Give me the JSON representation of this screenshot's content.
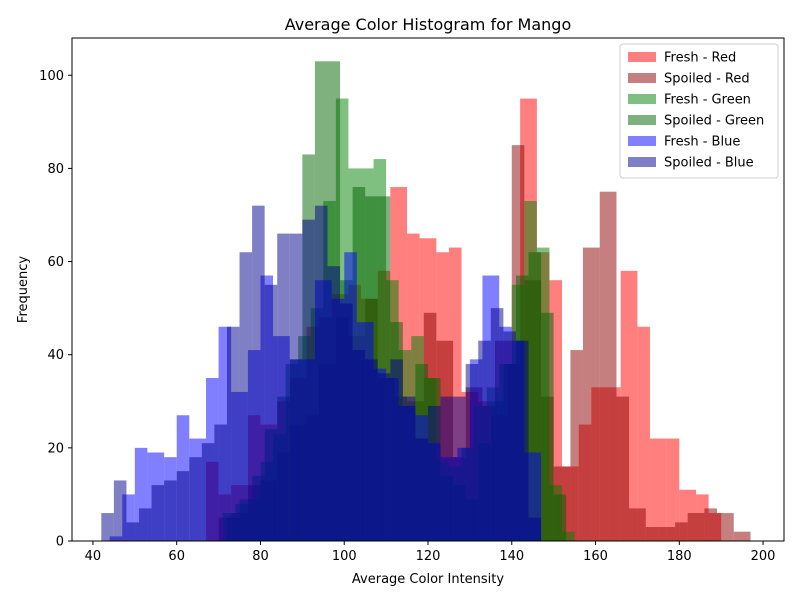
{
  "chart_data": {
    "type": "histogram",
    "title": "Average Color Histogram for Mango",
    "xlabel": "Average Color Intensity",
    "ylabel": "Frequency",
    "xlim": [
      35,
      205
    ],
    "ylim": [
      0,
      108
    ],
    "xticks": [
      40,
      60,
      80,
      100,
      120,
      140,
      160,
      180,
      200
    ],
    "yticks": [
      0,
      20,
      40,
      60,
      80,
      100
    ],
    "grid": false,
    "legend_position": "top-right",
    "series": [
      {
        "name": "Fresh - Red",
        "color": "#ff0000",
        "alpha": 0.5,
        "bins": [
          {
            "x0": 67,
            "x1": 70,
            "y": 17
          },
          {
            "x0": 70,
            "x1": 73,
            "y": 10
          },
          {
            "x0": 73,
            "x1": 77,
            "y": 12
          },
          {
            "x0": 77,
            "x1": 80,
            "y": 27
          },
          {
            "x0": 80,
            "x1": 84,
            "y": 25
          },
          {
            "x0": 84,
            "x1": 87,
            "y": 30
          },
          {
            "x0": 87,
            "x1": 91,
            "y": 35
          },
          {
            "x0": 91,
            "x1": 94,
            "y": 46
          },
          {
            "x0": 94,
            "x1": 97,
            "y": 48
          },
          {
            "x0": 97,
            "x1": 101,
            "y": 53
          },
          {
            "x0": 101,
            "x1": 104,
            "y": 55
          },
          {
            "x0": 104,
            "x1": 108,
            "y": 52
          },
          {
            "x0": 108,
            "x1": 111,
            "y": 58
          },
          {
            "x0": 111,
            "x1": 115,
            "y": 76
          },
          {
            "x0": 115,
            "x1": 118,
            "y": 66
          },
          {
            "x0": 118,
            "x1": 122,
            "y": 65
          },
          {
            "x0": 122,
            "x1": 125,
            "y": 62
          },
          {
            "x0": 125,
            "x1": 128,
            "y": 63
          },
          {
            "x0": 128,
            "x1": 132,
            "y": 32
          },
          {
            "x0": 132,
            "x1": 135,
            "y": 30
          },
          {
            "x0": 135,
            "x1": 139,
            "y": 27
          },
          {
            "x0": 139,
            "x1": 142,
            "y": 38
          },
          {
            "x0": 142,
            "x1": 146,
            "y": 95
          },
          {
            "x0": 146,
            "x1": 149,
            "y": 62
          },
          {
            "x0": 149,
            "x1": 152,
            "y": 56
          },
          {
            "x0": 152,
            "x1": 156,
            "y": 16
          },
          {
            "x0": 156,
            "x1": 159,
            "y": 25
          },
          {
            "x0": 159,
            "x1": 163,
            "y": 33
          },
          {
            "x0": 163,
            "x1": 166,
            "y": 33
          },
          {
            "x0": 166,
            "x1": 170,
            "y": 58
          },
          {
            "x0": 170,
            "x1": 173,
            "y": 46
          },
          {
            "x0": 173,
            "x1": 177,
            "y": 22
          },
          {
            "x0": 177,
            "x1": 180,
            "y": 22
          },
          {
            "x0": 180,
            "x1": 184,
            "y": 11
          },
          {
            "x0": 184,
            "x1": 187,
            "y": 10
          },
          {
            "x0": 187,
            "x1": 190,
            "y": 6
          }
        ]
      },
      {
        "name": "Spoiled - Red",
        "color": "#8b0000",
        "alpha": 0.5,
        "bins": [
          {
            "x0": 70,
            "x1": 73,
            "y": 5
          },
          {
            "x0": 73,
            "x1": 77,
            "y": 6
          },
          {
            "x0": 77,
            "x1": 80,
            "y": 12
          },
          {
            "x0": 80,
            "x1": 84,
            "y": 13
          },
          {
            "x0": 84,
            "x1": 87,
            "y": 19
          },
          {
            "x0": 87,
            "x1": 91,
            "y": 25
          },
          {
            "x0": 91,
            "x1": 94,
            "y": 27
          },
          {
            "x0": 94,
            "x1": 98,
            "y": 38
          },
          {
            "x0": 98,
            "x1": 101,
            "y": 48
          },
          {
            "x0": 101,
            "x1": 105,
            "y": 44
          },
          {
            "x0": 105,
            "x1": 108,
            "y": 52
          },
          {
            "x0": 108,
            "x1": 112,
            "y": 35
          },
          {
            "x0": 112,
            "x1": 115,
            "y": 31
          },
          {
            "x0": 115,
            "x1": 119,
            "y": 30
          },
          {
            "x0": 119,
            "x1": 122,
            "y": 49
          },
          {
            "x0": 122,
            "x1": 126,
            "y": 43
          },
          {
            "x0": 126,
            "x1": 129,
            "y": 18
          },
          {
            "x0": 129,
            "x1": 133,
            "y": 33
          },
          {
            "x0": 133,
            "x1": 136,
            "y": 29
          },
          {
            "x0": 136,
            "x1": 140,
            "y": 43
          },
          {
            "x0": 140,
            "x1": 143,
            "y": 85
          },
          {
            "x0": 143,
            "x1": 147,
            "y": 56
          },
          {
            "x0": 147,
            "x1": 150,
            "y": 31
          },
          {
            "x0": 150,
            "x1": 154,
            "y": 16
          },
          {
            "x0": 154,
            "x1": 157,
            "y": 41
          },
          {
            "x0": 157,
            "x1": 161,
            "y": 63
          },
          {
            "x0": 161,
            "x1": 165,
            "y": 75
          },
          {
            "x0": 165,
            "x1": 168,
            "y": 31
          },
          {
            "x0": 168,
            "x1": 172,
            "y": 7
          },
          {
            "x0": 172,
            "x1": 175,
            "y": 3
          },
          {
            "x0": 175,
            "x1": 179,
            "y": 3
          },
          {
            "x0": 179,
            "x1": 182,
            "y": 4
          },
          {
            "x0": 182,
            "x1": 186,
            "y": 6
          },
          {
            "x0": 186,
            "x1": 189,
            "y": 7
          },
          {
            "x0": 189,
            "x1": 193,
            "y": 6
          },
          {
            "x0": 193,
            "x1": 197,
            "y": 2
          }
        ]
      },
      {
        "name": "Fresh - Green",
        "color": "#008000",
        "alpha": 0.5,
        "bins": [
          {
            "x0": 71,
            "x1": 74,
            "y": 6
          },
          {
            "x0": 74,
            "x1": 77,
            "y": 8
          },
          {
            "x0": 77,
            "x1": 80,
            "y": 9
          },
          {
            "x0": 80,
            "x1": 83,
            "y": 17
          },
          {
            "x0": 83,
            "x1": 86,
            "y": 23
          },
          {
            "x0": 86,
            "x1": 89,
            "y": 38
          },
          {
            "x0": 89,
            "x1": 92,
            "y": 44
          },
          {
            "x0": 92,
            "x1": 95,
            "y": 50
          },
          {
            "x0": 95,
            "x1": 98,
            "y": 73
          },
          {
            "x0": 98,
            "x1": 101,
            "y": 95
          },
          {
            "x0": 101,
            "x1": 104,
            "y": 80
          },
          {
            "x0": 104,
            "x1": 107,
            "y": 80
          },
          {
            "x0": 107,
            "x1": 110,
            "y": 82
          },
          {
            "x0": 110,
            "x1": 113,
            "y": 56
          },
          {
            "x0": 113,
            "x1": 116,
            "y": 41
          },
          {
            "x0": 116,
            "x1": 119,
            "y": 44
          },
          {
            "x0": 119,
            "x1": 122,
            "y": 35
          },
          {
            "x0": 122,
            "x1": 125,
            "y": 17
          },
          {
            "x0": 125,
            "x1": 128,
            "y": 16
          },
          {
            "x0": 128,
            "x1": 131,
            "y": 20
          },
          {
            "x0": 131,
            "x1": 134,
            "y": 29
          },
          {
            "x0": 134,
            "x1": 137,
            "y": 33
          },
          {
            "x0": 137,
            "x1": 140,
            "y": 38
          },
          {
            "x0": 140,
            "x1": 143,
            "y": 55
          },
          {
            "x0": 143,
            "x1": 146,
            "y": 73
          },
          {
            "x0": 146,
            "x1": 149,
            "y": 63
          },
          {
            "x0": 149,
            "x1": 152,
            "y": 12
          },
          {
            "x0": 152,
            "x1": 155,
            "y": 2
          }
        ]
      },
      {
        "name": "Spoiled - Green",
        "color": "#006400",
        "alpha": 0.5,
        "bins": [
          {
            "x0": 72,
            "x1": 75,
            "y": 5
          },
          {
            "x0": 75,
            "x1": 78,
            "y": 9
          },
          {
            "x0": 78,
            "x1": 81,
            "y": 14
          },
          {
            "x0": 81,
            "x1": 84,
            "y": 24
          },
          {
            "x0": 84,
            "x1": 87,
            "y": 31
          },
          {
            "x0": 87,
            "x1": 90,
            "y": 39
          },
          {
            "x0": 90,
            "x1": 93,
            "y": 83
          },
          {
            "x0": 93,
            "x1": 96,
            "y": 103
          },
          {
            "x0": 96,
            "x1": 99,
            "y": 103
          },
          {
            "x0": 99,
            "x1": 102,
            "y": 56
          },
          {
            "x0": 102,
            "x1": 105,
            "y": 76
          },
          {
            "x0": 105,
            "x1": 108,
            "y": 74
          },
          {
            "x0": 108,
            "x1": 111,
            "y": 74
          },
          {
            "x0": 111,
            "x1": 114,
            "y": 47
          },
          {
            "x0": 114,
            "x1": 117,
            "y": 29
          },
          {
            "x0": 117,
            "x1": 120,
            "y": 38
          },
          {
            "x0": 120,
            "x1": 123,
            "y": 35
          },
          {
            "x0": 123,
            "x1": 126,
            "y": 14
          },
          {
            "x0": 126,
            "x1": 129,
            "y": 12
          },
          {
            "x0": 129,
            "x1": 132,
            "y": 9
          },
          {
            "x0": 132,
            "x1": 135,
            "y": 21
          },
          {
            "x0": 135,
            "x1": 138,
            "y": 30
          },
          {
            "x0": 138,
            "x1": 141,
            "y": 38
          },
          {
            "x0": 141,
            "x1": 144,
            "y": 57
          },
          {
            "x0": 144,
            "x1": 147,
            "y": 62
          },
          {
            "x0": 147,
            "x1": 150,
            "y": 49
          },
          {
            "x0": 150,
            "x1": 153,
            "y": 10
          }
        ]
      },
      {
        "name": "Fresh - Blue",
        "color": "#0000ff",
        "alpha": 0.5,
        "bins": [
          {
            "x0": 44,
            "x1": 47,
            "y": 1
          },
          {
            "x0": 47,
            "x1": 50,
            "y": 10
          },
          {
            "x0": 50,
            "x1": 53,
            "y": 20
          },
          {
            "x0": 53,
            "x1": 57,
            "y": 19
          },
          {
            "x0": 57,
            "x1": 60,
            "y": 18
          },
          {
            "x0": 60,
            "x1": 63,
            "y": 27
          },
          {
            "x0": 63,
            "x1": 67,
            "y": 22
          },
          {
            "x0": 67,
            "x1": 70,
            "y": 35
          },
          {
            "x0": 70,
            "x1": 73,
            "y": 46
          },
          {
            "x0": 73,
            "x1": 77,
            "y": 32
          },
          {
            "x0": 77,
            "x1": 80,
            "y": 41
          },
          {
            "x0": 80,
            "x1": 83,
            "y": 57
          },
          {
            "x0": 83,
            "x1": 87,
            "y": 44
          },
          {
            "x0": 87,
            "x1": 90,
            "y": 39
          },
          {
            "x0": 90,
            "x1": 93,
            "y": 39
          },
          {
            "x0": 93,
            "x1": 97,
            "y": 56
          },
          {
            "x0": 97,
            "x1": 100,
            "y": 52
          },
          {
            "x0": 100,
            "x1": 103,
            "y": 62
          },
          {
            "x0": 103,
            "x1": 107,
            "y": 47
          },
          {
            "x0": 107,
            "x1": 110,
            "y": 37
          },
          {
            "x0": 110,
            "x1": 113,
            "y": 35
          },
          {
            "x0": 113,
            "x1": 117,
            "y": 29
          },
          {
            "x0": 117,
            "x1": 120,
            "y": 27
          },
          {
            "x0": 120,
            "x1": 123,
            "y": 21
          },
          {
            "x0": 123,
            "x1": 127,
            "y": 18
          },
          {
            "x0": 127,
            "x1": 130,
            "y": 20
          },
          {
            "x0": 130,
            "x1": 133,
            "y": 39
          },
          {
            "x0": 133,
            "x1": 137,
            "y": 57
          },
          {
            "x0": 137,
            "x1": 140,
            "y": 46
          },
          {
            "x0": 140,
            "x1": 143,
            "y": 43
          },
          {
            "x0": 143,
            "x1": 147,
            "y": 19
          }
        ]
      },
      {
        "name": "Spoiled - Blue",
        "color": "#00008b",
        "alpha": 0.5,
        "bins": [
          {
            "x0": 42,
            "x1": 45,
            "y": 6
          },
          {
            "x0": 45,
            "x1": 48,
            "y": 13
          },
          {
            "x0": 48,
            "x1": 51,
            "y": 4
          },
          {
            "x0": 51,
            "x1": 54,
            "y": 7
          },
          {
            "x0": 54,
            "x1": 57,
            "y": 12
          },
          {
            "x0": 57,
            "x1": 60,
            "y": 13
          },
          {
            "x0": 60,
            "x1": 63,
            "y": 15
          },
          {
            "x0": 63,
            "x1": 66,
            "y": 18
          },
          {
            "x0": 66,
            "x1": 69,
            "y": 21
          },
          {
            "x0": 69,
            "x1": 72,
            "y": 25
          },
          {
            "x0": 72,
            "x1": 75,
            "y": 46
          },
          {
            "x0": 75,
            "x1": 78,
            "y": 62
          },
          {
            "x0": 78,
            "x1": 81,
            "y": 72
          },
          {
            "x0": 81,
            "x1": 84,
            "y": 55
          },
          {
            "x0": 84,
            "x1": 87,
            "y": 66
          },
          {
            "x0": 87,
            "x1": 90,
            "y": 66
          },
          {
            "x0": 90,
            "x1": 93,
            "y": 69
          },
          {
            "x0": 93,
            "x1": 96,
            "y": 72
          },
          {
            "x0": 96,
            "x1": 99,
            "y": 59
          },
          {
            "x0": 99,
            "x1": 102,
            "y": 51
          },
          {
            "x0": 102,
            "x1": 105,
            "y": 41
          },
          {
            "x0": 105,
            "x1": 108,
            "y": 39
          },
          {
            "x0": 108,
            "x1": 111,
            "y": 36
          },
          {
            "x0": 111,
            "x1": 114,
            "y": 39
          },
          {
            "x0": 114,
            "x1": 117,
            "y": 31
          },
          {
            "x0": 117,
            "x1": 120,
            "y": 22
          },
          {
            "x0": 120,
            "x1": 123,
            "y": 29
          },
          {
            "x0": 123,
            "x1": 126,
            "y": 31
          },
          {
            "x0": 126,
            "x1": 129,
            "y": 31
          },
          {
            "x0": 129,
            "x1": 132,
            "y": 38
          },
          {
            "x0": 132,
            "x1": 135,
            "y": 43
          },
          {
            "x0": 135,
            "x1": 138,
            "y": 50
          },
          {
            "x0": 138,
            "x1": 141,
            "y": 45
          },
          {
            "x0": 141,
            "x1": 144,
            "y": 43
          },
          {
            "x0": 144,
            "x1": 147,
            "y": 5
          }
        ]
      }
    ]
  }
}
